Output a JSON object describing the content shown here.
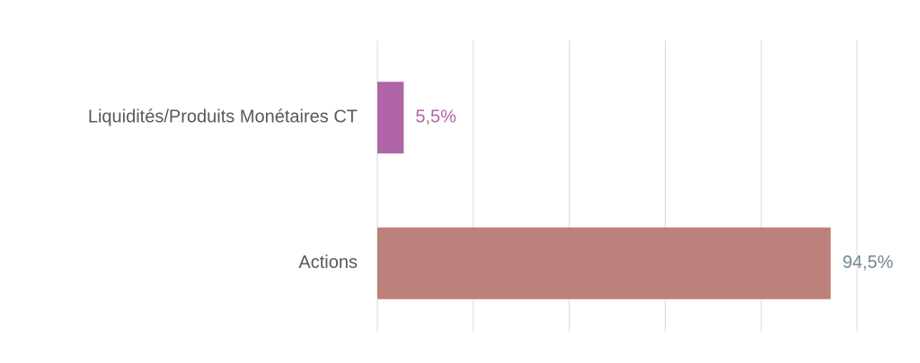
{
  "chart_data": {
    "type": "bar",
    "orientation": "horizontal",
    "categories": [
      "Liquidités/Produits Monétaires CT",
      "Actions"
    ],
    "values": [
      5.5,
      94.5
    ],
    "value_labels": [
      "5,5%",
      "94,5%"
    ],
    "colors": [
      "#b065a8",
      "#bc817a"
    ],
    "label_colors": [
      "#b065a8",
      "#6e8796"
    ],
    "xlim": [
      0,
      100
    ],
    "xticks": [
      0,
      20,
      40,
      60,
      80,
      100
    ],
    "grid": true
  }
}
